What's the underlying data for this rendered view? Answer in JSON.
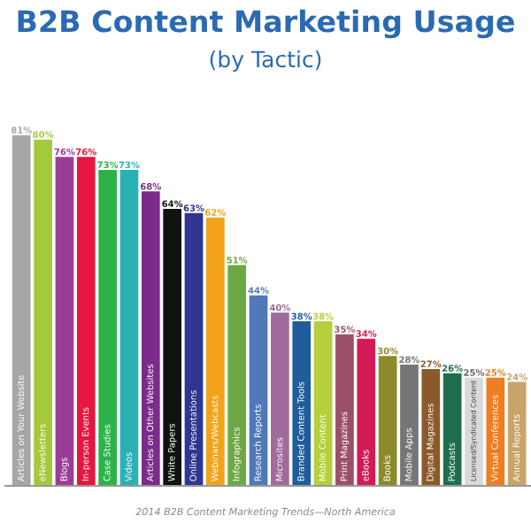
{
  "chart_data": {
    "type": "bar",
    "title": "B2B Content Marketing Usage",
    "subtitle": "(by Tactic)",
    "categories": [
      "Articles on Your Website",
      "eNewsletters",
      "Blogs",
      "In-person Events",
      "Case Studies",
      "Videos",
      "Articles on Other Websites",
      "White Papers",
      "Online Presentations",
      "Webinars/Webcasts",
      "Infographics",
      "Research Reports",
      "Microsites",
      "Branded Content Tools",
      "Mobile Content",
      "Print Magazines",
      "eBooks",
      "Books",
      "Mobile Apps",
      "Digital Magazines",
      "Podcasts",
      "Licensed/Syndicated Content",
      "Virtual Conferences",
      "Annual Reports"
    ],
    "values": [
      81,
      80,
      76,
      76,
      73,
      73,
      68,
      64,
      63,
      62,
      51,
      44,
      40,
      38,
      38,
      35,
      34,
      30,
      28,
      27,
      26,
      25,
      25,
      24
    ],
    "value_labels": [
      "81%",
      "80%",
      "76%",
      "76%",
      "73%",
      "73%",
      "68%",
      "64%",
      "63%",
      "62%",
      "51%",
      "44%",
      "40%",
      "38%",
      "38%",
      "35%",
      "34%",
      "30%",
      "28%",
      "27%",
      "26%",
      "25%",
      "25%",
      "24%"
    ],
    "colors": [
      "#a6a6a6",
      "#a4c93a",
      "#9b3d96",
      "#e5173f",
      "#2db24a",
      "#2ab1b5",
      "#7b2b8c",
      "#111111",
      "#2f3590",
      "#f2a31b",
      "#6ea844",
      "#4f79b8",
      "#9e6b9b",
      "#1f5d9a",
      "#b6cf3a",
      "#9c4f6b",
      "#d41a54",
      "#8d8a2a",
      "#767676",
      "#8a5a2b",
      "#1f6e4f",
      "#d9d9d9",
      "#ef7d22",
      "#c9a46a"
    ],
    "annotations": [
      "2014 B2B Content Marketing Trends—North America"
    ],
    "legend": false
  }
}
